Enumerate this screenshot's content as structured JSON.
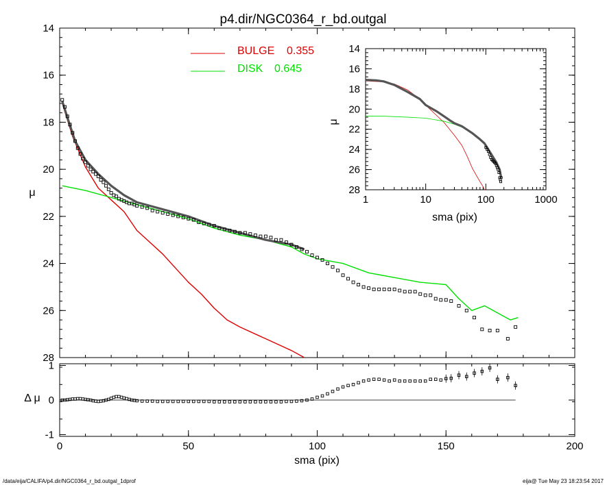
{
  "title": "p4.dir/NGC0364_r_bd.outgal",
  "footer": {
    "left": "/data/eija/CALIFA/p4.dir/NGC0364_r_bd.outgal_1dprof",
    "right": "eija@  Tue May 23 18:23:54 2017"
  },
  "colors": {
    "bulge": "#dd0000",
    "disk": "#00e000",
    "data": "#000000",
    "model": "#000000"
  },
  "chart_data": [
    {
      "id": "main",
      "type": "line",
      "title": "p4.dir/NGC0364_r_bd.outgal",
      "xlabel": "",
      "ylabel": "μ",
      "xlim": [
        0,
        200
      ],
      "ylim": [
        28,
        14
      ],
      "yticks": [
        "14",
        "16",
        "18",
        "20",
        "22",
        "24",
        "26",
        "28"
      ],
      "legend": [
        {
          "label": "BULGE",
          "value": "0.355",
          "color": "#dd0000"
        },
        {
          "label": "DISK",
          "value": "0.645",
          "color": "#00e000"
        }
      ],
      "series": [
        {
          "name": "BULGE",
          "color": "#dd0000",
          "x": [
            1,
            5,
            10,
            15,
            20,
            25,
            30,
            35,
            40,
            45,
            50,
            55,
            60,
            63,
            65,
            70,
            80,
            90,
            95
          ],
          "y": [
            17.2,
            18.6,
            19.9,
            20.8,
            21.3,
            21.8,
            22.6,
            23.1,
            23.6,
            24.2,
            24.8,
            25.3,
            25.9,
            26.2,
            26.4,
            26.7,
            27.2,
            27.7,
            28.0
          ]
        },
        {
          "name": "DISK",
          "color": "#00e000",
          "x": [
            1,
            10,
            20,
            30,
            40,
            50,
            60,
            70,
            80,
            90,
            95,
            100,
            110,
            120,
            125,
            130,
            140,
            150,
            155,
            160,
            165,
            170,
            175,
            178
          ],
          "y": [
            20.7,
            20.9,
            21.2,
            21.5,
            21.8,
            22.1,
            22.5,
            22.8,
            23.0,
            23.3,
            23.6,
            23.8,
            24.0,
            24.4,
            24.5,
            24.6,
            24.8,
            24.9,
            25.5,
            26.0,
            25.8,
            26.1,
            26.4,
            26.3
          ]
        },
        {
          "name": "model",
          "color": "#000000",
          "x": [
            1,
            3,
            6,
            10,
            15,
            20,
            25,
            30,
            40,
            50,
            60,
            70,
            80,
            90,
            95
          ],
          "y": [
            17.1,
            17.8,
            18.8,
            19.6,
            20.2,
            20.7,
            21.1,
            21.4,
            21.7,
            22.0,
            22.4,
            22.7,
            23.0,
            23.2,
            23.4
          ]
        },
        {
          "name": "data",
          "marker": "square",
          "color": "#000000",
          "x": [
            1,
            2,
            3,
            4,
            5,
            6,
            7,
            8,
            9,
            10,
            11,
            12,
            13,
            14,
            15,
            16,
            17,
            18,
            19,
            20,
            21,
            22,
            23,
            24,
            25,
            26,
            27,
            28,
            29,
            30,
            32,
            34,
            36,
            38,
            40,
            42,
            44,
            46,
            48,
            50,
            52,
            54,
            56,
            58,
            60,
            62,
            64,
            66,
            68,
            70,
            72,
            74,
            76,
            78,
            80,
            82,
            84,
            86,
            88,
            90,
            92,
            94,
            96,
            98,
            100,
            102,
            104,
            106,
            108,
            110,
            112,
            114,
            116,
            118,
            120,
            122,
            124,
            126,
            128,
            130,
            132,
            134,
            136,
            138,
            140,
            142,
            144,
            146,
            148,
            150,
            152,
            155,
            158,
            161,
            164,
            167,
            170,
            174,
            177
          ],
          "y": [
            17.05,
            17.35,
            17.75,
            18.1,
            18.45,
            18.8,
            19.1,
            19.35,
            19.55,
            19.7,
            19.85,
            20.0,
            20.1,
            20.2,
            20.3,
            20.45,
            20.55,
            20.7,
            20.85,
            21.0,
            21.1,
            21.15,
            21.25,
            21.3,
            21.35,
            21.4,
            21.45,
            21.45,
            21.5,
            21.55,
            21.6,
            21.65,
            21.75,
            21.8,
            21.85,
            21.9,
            21.95,
            22.0,
            22.05,
            22.1,
            22.15,
            22.25,
            22.3,
            22.35,
            22.4,
            22.5,
            22.55,
            22.6,
            22.65,
            22.7,
            22.7,
            22.75,
            22.8,
            22.85,
            22.85,
            22.9,
            23.0,
            23.0,
            23.1,
            23.2,
            23.3,
            23.4,
            23.5,
            23.65,
            23.75,
            23.85,
            24.0,
            24.15,
            24.3,
            24.5,
            24.65,
            24.8,
            24.9,
            25.0,
            25.05,
            25.1,
            25.1,
            25.1,
            25.1,
            25.1,
            25.15,
            25.2,
            25.2,
            25.2,
            25.3,
            25.35,
            25.35,
            25.5,
            25.55,
            25.55,
            25.6,
            25.8,
            26.0,
            26.3,
            26.8,
            26.85,
            26.85,
            27.2,
            26.7
          ]
        }
      ]
    },
    {
      "id": "residual",
      "type": "scatter",
      "xlabel": "sma (pix)",
      "ylabel": "Δ μ",
      "xlim": [
        0,
        200
      ],
      "ylim": [
        -1.05,
        1.05
      ],
      "xticks": [
        "0",
        "50",
        "100",
        "150",
        "200"
      ],
      "yticks": [
        "1",
        "0",
        "-1"
      ],
      "series": [
        {
          "name": "residual",
          "marker": "square",
          "color": "#000000",
          "x": [
            1,
            2,
            3,
            4,
            5,
            6,
            7,
            8,
            9,
            10,
            11,
            12,
            13,
            14,
            15,
            16,
            17,
            18,
            19,
            20,
            21,
            22,
            23,
            24,
            25,
            26,
            27,
            28,
            29,
            30,
            32,
            34,
            36,
            38,
            40,
            42,
            44,
            46,
            48,
            50,
            52,
            54,
            56,
            58,
            60,
            62,
            64,
            66,
            68,
            70,
            72,
            74,
            76,
            78,
            80,
            82,
            84,
            86,
            88,
            90,
            92,
            94,
            96,
            98,
            100,
            102,
            104,
            106,
            108,
            110,
            112,
            114,
            116,
            118,
            120,
            122,
            124,
            126,
            128,
            130,
            132,
            134,
            136,
            138,
            140,
            142,
            144,
            146,
            148,
            150,
            152,
            155,
            158,
            161,
            164,
            167,
            170,
            174,
            177
          ],
          "y": [
            0.0,
            0.0,
            0.01,
            0.02,
            0.03,
            0.03,
            0.04,
            0.04,
            0.03,
            0.02,
            0.01,
            0.0,
            -0.02,
            -0.03,
            -0.04,
            -0.03,
            -0.02,
            0.0,
            0.02,
            0.05,
            0.08,
            0.1,
            0.1,
            0.08,
            0.06,
            0.04,
            0.02,
            0.0,
            -0.01,
            -0.02,
            -0.03,
            -0.03,
            -0.03,
            -0.04,
            -0.04,
            -0.04,
            -0.04,
            -0.04,
            -0.04,
            -0.04,
            -0.04,
            -0.04,
            -0.04,
            -0.04,
            -0.05,
            -0.05,
            -0.05,
            -0.05,
            -0.05,
            -0.05,
            -0.05,
            -0.05,
            -0.05,
            -0.05,
            -0.05,
            -0.05,
            -0.05,
            -0.05,
            -0.04,
            -0.04,
            -0.03,
            -0.02,
            0.0,
            0.03,
            0.08,
            0.12,
            0.18,
            0.25,
            0.32,
            0.38,
            0.42,
            0.45,
            0.5,
            0.55,
            0.58,
            0.6,
            0.6,
            0.58,
            0.55,
            0.58,
            0.55,
            0.55,
            0.55,
            0.55,
            0.55,
            0.55,
            0.6,
            0.6,
            0.58,
            0.62,
            0.63,
            0.72,
            0.68,
            0.78,
            0.83,
            0.93,
            0.6,
            0.65,
            0.42
          ]
        },
        {
          "name": "zero",
          "color": "#000000",
          "x": [
            0,
            177
          ],
          "y": [
            0,
            0
          ]
        }
      ]
    },
    {
      "id": "inset",
      "type": "line",
      "xscale": "log",
      "xlabel": "sma (pix)",
      "ylabel": "μ",
      "xlim": [
        1,
        1000
      ],
      "ylim": [
        28,
        14
      ],
      "xticks": [
        "1",
        "10",
        "100",
        "1000"
      ],
      "yticks": [
        "14",
        "16",
        "18",
        "20",
        "22",
        "24",
        "26",
        "28"
      ],
      "series": [
        {
          "name": "BULGE",
          "color": "#dd0000",
          "x": [
            1,
            2,
            3,
            5,
            8,
            10,
            15,
            20,
            30,
            40,
            50,
            60,
            70,
            80,
            90,
            95
          ],
          "y": [
            17.2,
            17.3,
            17.5,
            18.1,
            19.0,
            19.6,
            20.6,
            21.3,
            22.6,
            23.6,
            24.8,
            25.9,
            26.6,
            27.2,
            27.7,
            28.0
          ]
        },
        {
          "name": "DISK",
          "color": "#00e000",
          "x": [
            1,
            2,
            5,
            10,
            20,
            30,
            40,
            50
          ],
          "y": [
            20.7,
            20.7,
            20.8,
            20.9,
            21.2,
            21.5,
            21.8,
            22.1
          ]
        },
        {
          "name": "model",
          "color": "#000000",
          "x": [
            1,
            1.5,
            2,
            3,
            5,
            8,
            10,
            15,
            20,
            25,
            30,
            40,
            60,
            80,
            95,
            110,
            130,
            150,
            170,
            180
          ],
          "y": [
            17.1,
            17.15,
            17.25,
            17.6,
            18.3,
            19.0,
            19.6,
            20.2,
            20.7,
            21.1,
            21.4,
            21.7,
            22.4,
            23.0,
            23.4,
            24.0,
            24.7,
            25.3,
            26.0,
            26.8
          ]
        },
        {
          "name": "data",
          "marker": "square",
          "color": "#000000",
          "x": [
            100,
            105,
            110,
            115,
            120,
            125,
            130,
            135,
            140,
            145,
            150,
            155,
            160,
            165,
            170,
            174,
            177,
            180
          ],
          "y": [
            23.8,
            24.0,
            24.2,
            24.5,
            24.8,
            25.0,
            25.1,
            25.2,
            25.3,
            25.4,
            25.6,
            25.8,
            26.0,
            26.3,
            26.8,
            27.0,
            27.2,
            26.8
          ]
        }
      ]
    }
  ]
}
